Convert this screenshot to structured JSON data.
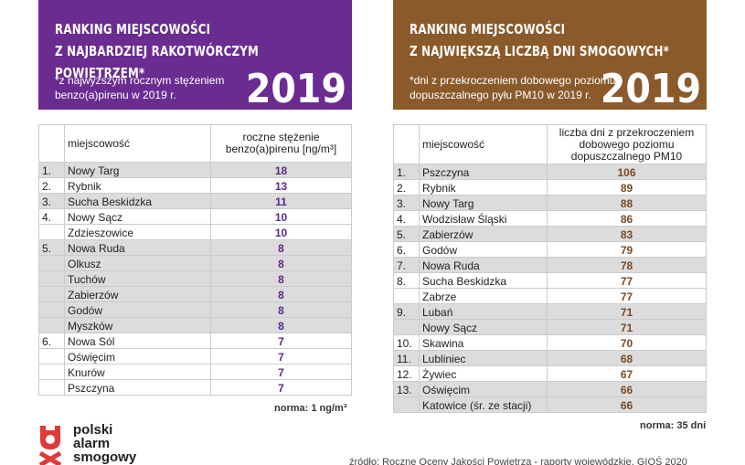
{
  "panels": [
    {
      "title": [
        "RANKING MIEJSCOWOŚCI",
        "Z NAJBARDZIEJ RAKOTWÓRCZYM POWIETRZEM*"
      ],
      "note": [
        "*z najwyższym rocznym stężeniem",
        "benzo(a)pirenu w 2019 r."
      ],
      "year": "2019",
      "columns": [
        "miejscowość",
        [
          "roczne stężenie",
          "benzo(a)pirenu [ng/m³]"
        ]
      ],
      "rows": [
        [
          "1.",
          "Nowy Targ",
          18
        ],
        [
          "2.",
          "Rybnik",
          13
        ],
        [
          "3.",
          "Sucha Beskidzka",
          11
        ],
        [
          "4.",
          "Nowy Sącz",
          10
        ],
        [
          null,
          "Zdzieszowice",
          10
        ],
        [
          "5.",
          "Nowa Ruda",
          8
        ],
        [
          null,
          "Olkusz",
          8
        ],
        [
          null,
          "Tuchów",
          8
        ],
        [
          null,
          "Zabierzów",
          8
        ],
        [
          null,
          "Godów",
          8
        ],
        [
          null,
          "Myszków",
          8
        ],
        [
          "6.",
          "Nowa Sól",
          7
        ],
        [
          null,
          "Oświęcim",
          7
        ],
        [
          null,
          "Knurów",
          7
        ],
        [
          null,
          "Pszczyna",
          7
        ]
      ],
      "norm": "norma: 1 ng/m³"
    },
    {
      "title": [
        "RANKING MIEJSCOWOŚCI",
        "Z NAJWIĘKSZĄ LICZBĄ DNI SMOGOWYCH*"
      ],
      "note": [
        "*dni z przekroczeniem dobowego poziomu",
        "dopuszczalnego pyłu PM10 w 2019 r."
      ],
      "year": "2019",
      "columns": [
        "miejscowość",
        [
          "liczba dni z przekroczeniem",
          "dobowego poziomu",
          "dopuszczalnego PM10"
        ]
      ],
      "rows": [
        [
          "1.",
          "Pszczyna",
          106
        ],
        [
          "2.",
          "Rybnik",
          89
        ],
        [
          "3.",
          "Nowy Targ",
          88
        ],
        [
          "4.",
          "Wodzisław Śląski",
          86
        ],
        [
          "5.",
          "Zabierzów",
          83
        ],
        [
          "6.",
          "Godów",
          79
        ],
        [
          "7.",
          "Nowa Ruda",
          78
        ],
        [
          "8.",
          "Sucha Beskidzka",
          77
        ],
        [
          null,
          "Zabrze",
          77
        ],
        [
          "9.",
          "Lubań",
          71
        ],
        [
          null,
          "Nowy Sącz",
          71
        ],
        [
          "10.",
          "Skawina",
          70
        ],
        [
          "11.",
          "Lubliniec",
          68
        ],
        [
          "12.",
          "Żywiec",
          67
        ],
        [
          "13.",
          "Oświęcim",
          66
        ],
        [
          null,
          "Katowice (śr. ze stacji)",
          66
        ]
      ],
      "norm": "norma: 35 dni"
    }
  ],
  "logo": [
    "polski",
    "alarm",
    "smogowy"
  ],
  "source": "źródło: Roczne Oceny Jakości Powietrza - raporty wojewódzkie, GIOŚ 2020"
}
